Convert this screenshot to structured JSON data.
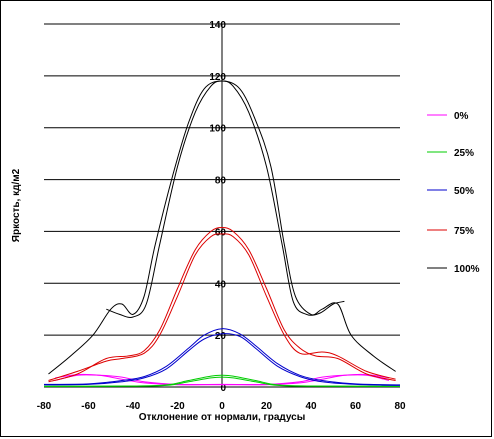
{
  "chart_data": {
    "type": "line",
    "title": "",
    "xlabel": "Отклонение от нормали, градусы",
    "ylabel": "Яркость, кд/м2",
    "xlim": [
      -80,
      80
    ],
    "ylim": [
      0,
      140
    ],
    "x_ticks": [
      "-80",
      "-60",
      "-40",
      "-20",
      "0",
      "20",
      "40",
      "60",
      "80"
    ],
    "y_ticks": [
      "0",
      "20",
      "40",
      "60",
      "80",
      "100",
      "120",
      "140"
    ],
    "grid": "horizontal",
    "legend_position": "right",
    "series": [
      {
        "name": "0%",
        "color": "#ff00ff",
        "curves": [
          [
            [
              -75,
              2.5
            ],
            [
              -65,
              4.5
            ],
            [
              -55,
              4.5
            ],
            [
              -45,
              3.8
            ],
            [
              -35,
              2
            ],
            [
              -20,
              1
            ],
            [
              0,
              1
            ],
            [
              20,
              1
            ],
            [
              35,
              2
            ],
            [
              45,
              3.8
            ],
            [
              55,
              4.5
            ],
            [
              65,
              4.5
            ],
            [
              75,
              2.5
            ]
          ],
          [
            [
              -75,
              3.5
            ],
            [
              -65,
              4.8
            ],
            [
              -55,
              4.5
            ],
            [
              -45,
              3
            ],
            [
              -35,
              1.6
            ],
            [
              -20,
              0.9
            ],
            [
              0,
              0.9
            ],
            [
              20,
              0.9
            ],
            [
              35,
              1.6
            ],
            [
              45,
              3
            ],
            [
              55,
              4.5
            ],
            [
              65,
              4.8
            ],
            [
              75,
              3.5
            ]
          ]
        ]
      },
      {
        "name": "25%",
        "color": "#00cc00",
        "curves": [
          [
            [
              -80,
              0.3
            ],
            [
              -40,
              0.4
            ],
            [
              -25,
              0.8
            ],
            [
              -15,
              2.5
            ],
            [
              -5,
              4.2
            ],
            [
              0,
              4.5
            ],
            [
              5,
              4.2
            ],
            [
              15,
              2.5
            ],
            [
              25,
              0.8
            ],
            [
              40,
              0.4
            ],
            [
              80,
              0.3
            ]
          ],
          [
            [
              -80,
              0.2
            ],
            [
              -40,
              0.3
            ],
            [
              -25,
              0.6
            ],
            [
              -15,
              2
            ],
            [
              -5,
              3.5
            ],
            [
              0,
              3.8
            ],
            [
              5,
              3.5
            ],
            [
              15,
              2
            ],
            [
              25,
              0.6
            ],
            [
              40,
              0.3
            ],
            [
              80,
              0.2
            ]
          ]
        ]
      },
      {
        "name": "50%",
        "color": "#0000cc",
        "curves": [
          [
            [
              -80,
              1
            ],
            [
              -60,
              1.2
            ],
            [
              -45,
              2.5
            ],
            [
              -35,
              4
            ],
            [
              -25,
              8
            ],
            [
              -15,
              15
            ],
            [
              -8,
              20
            ],
            [
              0,
              22.5
            ],
            [
              8,
              20.5
            ],
            [
              15,
              16
            ],
            [
              25,
              9
            ],
            [
              35,
              4.5
            ],
            [
              45,
              2.5
            ],
            [
              60,
              1.2
            ],
            [
              80,
              0.8
            ]
          ],
          [
            [
              -80,
              0.8
            ],
            [
              -60,
              1
            ],
            [
              -45,
              2
            ],
            [
              -35,
              3.5
            ],
            [
              -25,
              7
            ],
            [
              -15,
              14
            ],
            [
              -8,
              18.5
            ],
            [
              0,
              20.5
            ],
            [
              8,
              19.5
            ],
            [
              15,
              15
            ],
            [
              25,
              8
            ],
            [
              35,
              4
            ],
            [
              45,
              2
            ],
            [
              60,
              1
            ],
            [
              80,
              0.6
            ]
          ]
        ]
      },
      {
        "name": "75%",
        "color": "#dd0000",
        "curves": [
          [
            [
              -78,
              2
            ],
            [
              -65,
              5
            ],
            [
              -52,
              11
            ],
            [
              -42,
              12
            ],
            [
              -35,
              14
            ],
            [
              -28,
              22
            ],
            [
              -20,
              38
            ],
            [
              -12,
              53
            ],
            [
              -5,
              60
            ],
            [
              0,
              61.5
            ],
            [
              5,
              60
            ],
            [
              12,
              53
            ],
            [
              20,
              38
            ],
            [
              28,
              22
            ],
            [
              35,
              15
            ],
            [
              42,
              12
            ],
            [
              52,
              11
            ],
            [
              65,
              5
            ],
            [
              78,
              2.5
            ]
          ],
          [
            [
              -78,
              2.5
            ],
            [
              -65,
              6
            ],
            [
              -52,
              10
            ],
            [
              -45,
              11
            ],
            [
              -35,
              13
            ],
            [
              -28,
              20
            ],
            [
              -20,
              35
            ],
            [
              -12,
              51
            ],
            [
              -5,
              58
            ],
            [
              0,
              59
            ],
            [
              5,
              58
            ],
            [
              12,
              51
            ],
            [
              20,
              35
            ],
            [
              28,
              20
            ],
            [
              35,
              13
            ],
            [
              45,
              13.5
            ],
            [
              52,
              12
            ],
            [
              65,
              6
            ],
            [
              78,
              3
            ]
          ]
        ]
      },
      {
        "name": "100%",
        "color": "#000000",
        "curves": [
          [
            [
              -78,
              5
            ],
            [
              -68,
              12
            ],
            [
              -58,
              20
            ],
            [
              -50,
              30
            ],
            [
              -45,
              32
            ],
            [
              -40,
              28
            ],
            [
              -35,
              35
            ],
            [
              -30,
              55
            ],
            [
              -22,
              82
            ],
            [
              -15,
              102
            ],
            [
              -8,
              115
            ],
            [
              0,
              118
            ],
            [
              8,
              115
            ],
            [
              15,
              103
            ],
            [
              22,
              85
            ],
            [
              28,
              55
            ],
            [
              33,
              35
            ],
            [
              40,
              28
            ],
            [
              45,
              30
            ],
            [
              52,
              32
            ],
            [
              58,
              20
            ],
            [
              68,
              12
            ],
            [
              78,
              6
            ]
          ],
          [
            [
              -52,
              30
            ],
            [
              -46,
              28
            ],
            [
              -40,
              27
            ],
            [
              -34,
              32
            ],
            [
              -28,
              55
            ],
            [
              -20,
              85
            ],
            [
              -12,
              106
            ],
            [
              -5,
              116
            ],
            [
              0,
              118
            ],
            [
              5,
              116
            ],
            [
              12,
              106
            ],
            [
              20,
              85
            ],
            [
              27,
              55
            ],
            [
              32,
              33
            ],
            [
              38,
              28
            ],
            [
              44,
              28.5
            ],
            [
              50,
              32
            ],
            [
              55,
              33
            ]
          ]
        ]
      }
    ]
  }
}
